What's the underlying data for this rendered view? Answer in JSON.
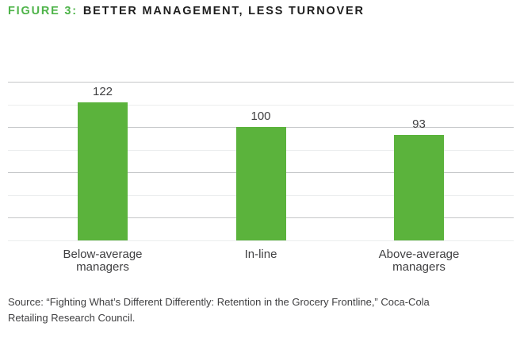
{
  "figure": {
    "label": "FIGURE 3:",
    "title": "BETTER MANAGEMENT, LESS TURNOVER"
  },
  "chart_data": {
    "type": "bar",
    "title": "FIGURE 3: BETTER MANAGEMENT, LESS TURNOVER",
    "categories": [
      "Below-average managers",
      "In-line",
      "Above-average managers"
    ],
    "values": [
      122,
      100,
      93
    ],
    "value_labels": [
      "122",
      "100",
      "93"
    ],
    "tick_lines": [
      [
        "Below-average",
        "managers"
      ],
      [
        "In-line"
      ],
      [
        "Above-average",
        "managers"
      ]
    ],
    "xlabel": "",
    "ylabel": "",
    "ylim": [
      0,
      140
    ],
    "gridline_step": 20,
    "y_gridlines": [
      140,
      120,
      100,
      80,
      60,
      40,
      20,
      0
    ],
    "grid": "horizontal-only, no y-axis tick labels",
    "legend": "none"
  },
  "source": {
    "lines": [
      "Source: “Fighting What’s Different Differently: Retention in the Grocery Frontline,” Coca-Cola",
      "Retailing Research Council."
    ]
  },
  "colors": {
    "figure_label_green": "#4FB44A",
    "bar_green": "#5BB33C",
    "gridline_major": "#c5c7c9",
    "gridline_minor": "#ebedee",
    "text_dark": "#3f3f41",
    "title_black": "#1e1e1e"
  }
}
